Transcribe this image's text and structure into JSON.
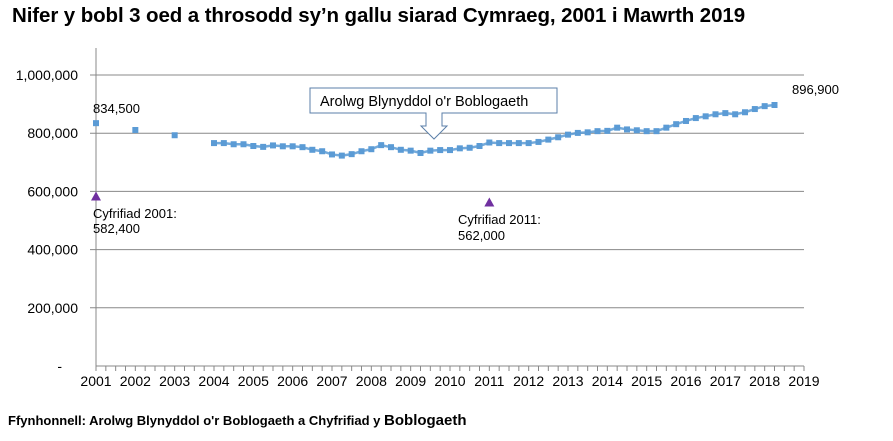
{
  "title": "Nifer y bobl 3 oed a throsodd sy’n gallu siarad Cymraeg, 2001 i Mawrth 2019",
  "source": {
    "prefix": "Ffynhonnell: Arolwg Blynyddol o'r Boblogaeth a Chyfrifiad y",
    "suffix": "Boblogaeth"
  },
  "callout": {
    "label": "Arolwg Blynyddol o'r Boblogaeth"
  },
  "annotations": {
    "first_aps": "834,500",
    "last_aps": "896,900",
    "census2001_label": "Cyfrifiad 2001:",
    "census2001_value": "582,400",
    "census2011_label": "Cyfrifiad 2011:",
    "census2011_value": "562,000"
  },
  "colors": {
    "series_aps": "#5b9bd5",
    "series_census": "#7030a0",
    "gridline": "#888888",
    "axis": "#888888"
  },
  "chart_data": {
    "type": "scatter",
    "title": "Nifer y bobl 3 oed a throsodd sy’n gallu siarad Cymraeg, 2001 i Mawrth 2019",
    "xlabel": "",
    "ylabel": "",
    "ylim": [
      0,
      1000000
    ],
    "xlim": [
      2001,
      2019
    ],
    "yticks": [
      "-",
      "200,000",
      "400,000",
      "600,000",
      "800,000",
      "1,000,000"
    ],
    "xticks": [
      "2001",
      "2002",
      "2003",
      "2004",
      "2005",
      "2006",
      "2007",
      "2008",
      "2009",
      "2010",
      "2011",
      "2012",
      "2013",
      "2014",
      "2015",
      "2016",
      "2017",
      "2018",
      "2019"
    ],
    "grid": true,
    "legend": "none",
    "series": [
      {
        "name": "Arolwg Blynyddol o'r Boblogaeth",
        "marker": "square",
        "points": [
          {
            "x": 2001.0,
            "y": 834500
          },
          {
            "x": 2002.0,
            "y": 811000
          },
          {
            "x": 2003.0,
            "y": 793000
          },
          {
            "x": 2004.0,
            "y": 766000
          },
          {
            "x": 2004.25,
            "y": 766000
          },
          {
            "x": 2004.5,
            "y": 762000
          },
          {
            "x": 2004.75,
            "y": 762000
          },
          {
            "x": 2005.0,
            "y": 756000
          },
          {
            "x": 2005.25,
            "y": 753000
          },
          {
            "x": 2005.5,
            "y": 758000
          },
          {
            "x": 2005.75,
            "y": 755000
          },
          {
            "x": 2006.0,
            "y": 755000
          },
          {
            "x": 2006.25,
            "y": 752000
          },
          {
            "x": 2006.5,
            "y": 743000
          },
          {
            "x": 2006.75,
            "y": 738000
          },
          {
            "x": 2007.0,
            "y": 727000
          },
          {
            "x": 2007.25,
            "y": 723000
          },
          {
            "x": 2007.5,
            "y": 728000
          },
          {
            "x": 2007.75,
            "y": 738000
          },
          {
            "x": 2008.0,
            "y": 745000
          },
          {
            "x": 2008.25,
            "y": 759000
          },
          {
            "x": 2008.5,
            "y": 752000
          },
          {
            "x": 2008.75,
            "y": 743000
          },
          {
            "x": 2009.0,
            "y": 740000
          },
          {
            "x": 2009.25,
            "y": 732000
          },
          {
            "x": 2009.5,
            "y": 740000
          },
          {
            "x": 2009.75,
            "y": 742000
          },
          {
            "x": 2010.0,
            "y": 742000
          },
          {
            "x": 2010.25,
            "y": 748000
          },
          {
            "x": 2010.5,
            "y": 750000
          },
          {
            "x": 2010.75,
            "y": 756000
          },
          {
            "x": 2011.0,
            "y": 768000
          },
          {
            "x": 2011.25,
            "y": 766000
          },
          {
            "x": 2011.5,
            "y": 766000
          },
          {
            "x": 2011.75,
            "y": 766000
          },
          {
            "x": 2012.0,
            "y": 766000
          },
          {
            "x": 2012.25,
            "y": 770000
          },
          {
            "x": 2012.5,
            "y": 778000
          },
          {
            "x": 2012.75,
            "y": 786000
          },
          {
            "x": 2013.0,
            "y": 795000
          },
          {
            "x": 2013.25,
            "y": 801000
          },
          {
            "x": 2013.5,
            "y": 803000
          },
          {
            "x": 2013.75,
            "y": 807000
          },
          {
            "x": 2014.0,
            "y": 808000
          },
          {
            "x": 2014.25,
            "y": 819000
          },
          {
            "x": 2014.5,
            "y": 813000
          },
          {
            "x": 2014.75,
            "y": 810000
          },
          {
            "x": 2015.0,
            "y": 807000
          },
          {
            "x": 2015.25,
            "y": 807000
          },
          {
            "x": 2015.5,
            "y": 819000
          },
          {
            "x": 2015.75,
            "y": 831000
          },
          {
            "x": 2016.0,
            "y": 842000
          },
          {
            "x": 2016.25,
            "y": 852000
          },
          {
            "x": 2016.5,
            "y": 858000
          },
          {
            "x": 2016.75,
            "y": 865000
          },
          {
            "x": 2017.0,
            "y": 869000
          },
          {
            "x": 2017.25,
            "y": 865000
          },
          {
            "x": 2017.5,
            "y": 872000
          },
          {
            "x": 2017.75,
            "y": 883000
          },
          {
            "x": 2018.0,
            "y": 893000
          },
          {
            "x": 2018.25,
            "y": 896900
          }
        ]
      },
      {
        "name": "Cyfrifiad",
        "marker": "triangle",
        "points": [
          {
            "x": 2001.0,
            "y": 582400,
            "label": "Cyfrifiad 2001: 582,400"
          },
          {
            "x": 2011.0,
            "y": 562000,
            "label": "Cyfrifiad 2011: 562,000"
          }
        ]
      }
    ],
    "annotations": [
      {
        "text": "834,500",
        "x": 2001.0,
        "y": 834500
      },
      {
        "text": "896,900",
        "x": 2018.25,
        "y": 896900
      },
      {
        "text": "Arolwg Blynyddol o'r Boblogaeth",
        "type": "callout-arrow",
        "x": 2009.65
      }
    ]
  }
}
